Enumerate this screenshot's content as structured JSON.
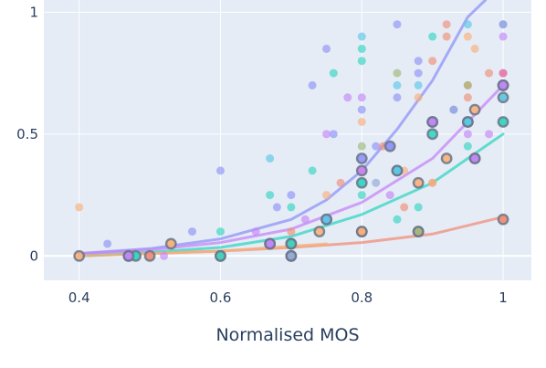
{
  "chart_data": {
    "type": "scatter",
    "title": "",
    "xlabel": "Normalised MOS",
    "ylabel": "",
    "xlim": [
      0.35,
      1.04
    ],
    "ylim": [
      -0.1,
      1.05
    ],
    "x_ticks": [
      {
        "value": 0.4,
        "label": "0.4"
      },
      {
        "value": 0.6,
        "label": "0.6"
      },
      {
        "value": 0.8,
        "label": "0.8"
      },
      {
        "value": 1.0,
        "label": "1"
      }
    ],
    "y_ticks": [
      {
        "value": 0,
        "label": "0"
      },
      {
        "value": 0.5,
        "label": "0.5"
      },
      {
        "value": 1,
        "label": "1"
      }
    ],
    "grid": true,
    "background": "#e5ecf6",
    "series": [
      {
        "color": "#8f93f7",
        "points": [
          [
            0.44,
            0.05
          ],
          [
            0.56,
            0.1
          ],
          [
            0.6,
            0.35
          ],
          [
            0.68,
            0.2
          ],
          [
            0.7,
            0.25
          ],
          [
            0.73,
            0.7
          ],
          [
            0.75,
            0.85
          ],
          [
            0.76,
            0.5
          ],
          [
            0.8,
            0.6
          ],
          [
            0.82,
            0.45
          ],
          [
            0.84,
            0.45
          ],
          [
            0.85,
            0.65
          ],
          [
            0.85,
            0.95
          ],
          [
            0.88,
            0.8
          ],
          [
            0.88,
            0.75
          ],
          [
            0.93,
            0.6
          ],
          [
            0.96,
            0.4
          ],
          [
            1.0,
            0.95
          ]
        ],
        "highlight": [
          [
            0.47,
            0
          ],
          [
            0.67,
            0.05
          ],
          [
            0.75,
            0.15
          ],
          [
            0.8,
            0.4
          ],
          [
            0.84,
            0.45
          ],
          [
            0.9,
            0.55
          ],
          [
            0.96,
            0.4
          ],
          [
            1.0,
            0.7
          ]
        ],
        "curve": [
          [
            0.4,
            0.01
          ],
          [
            0.5,
            0.03
          ],
          [
            0.6,
            0.07
          ],
          [
            0.7,
            0.15
          ],
          [
            0.75,
            0.23
          ],
          [
            0.8,
            0.35
          ],
          [
            0.85,
            0.52
          ],
          [
            0.9,
            0.72
          ],
          [
            0.95,
            0.98
          ],
          [
            0.975,
            1.05
          ]
        ]
      },
      {
        "color": "#ef8f78",
        "points": [
          [
            0.5,
            0
          ],
          [
            0.7,
            0.1
          ],
          [
            0.77,
            0.3
          ],
          [
            0.8,
            0.35
          ],
          [
            0.83,
            0.45
          ],
          [
            0.86,
            0.2
          ],
          [
            0.9,
            0.8
          ],
          [
            0.9,
            0.3
          ],
          [
            0.92,
            0.9
          ],
          [
            0.92,
            0.95
          ],
          [
            0.95,
            0.65
          ],
          [
            0.95,
            0.7
          ],
          [
            0.98,
            0.75
          ],
          [
            1.0,
            0.75
          ],
          [
            1.0,
            0.15
          ]
        ],
        "highlight": [
          [
            0.5,
            0
          ],
          [
            0.6,
            0
          ],
          [
            0.7,
            0.05
          ],
          [
            0.8,
            0.1
          ],
          [
            0.88,
            0.1
          ],
          [
            1.0,
            0.15
          ]
        ],
        "curve": [
          [
            0.4,
            0.0
          ],
          [
            0.5,
            0.01
          ],
          [
            0.6,
            0.02
          ],
          [
            0.7,
            0.035
          ],
          [
            0.8,
            0.055
          ],
          [
            0.9,
            0.09
          ],
          [
            1.0,
            0.16
          ]
        ]
      },
      {
        "color": "#33d6c0",
        "points": [
          [
            0.48,
            0
          ],
          [
            0.6,
            0.1
          ],
          [
            0.67,
            0.25
          ],
          [
            0.7,
            0.2
          ],
          [
            0.73,
            0.35
          ],
          [
            0.76,
            0.75
          ],
          [
            0.8,
            0.85
          ],
          [
            0.8,
            0.8
          ],
          [
            0.8,
            0.25
          ],
          [
            0.85,
            0.15
          ],
          [
            0.88,
            0.2
          ],
          [
            0.9,
            0.9
          ],
          [
            0.9,
            0.55
          ],
          [
            0.95,
            0.45
          ],
          [
            1.0,
            0.7
          ]
        ],
        "highlight": [
          [
            0.48,
            0
          ],
          [
            0.6,
            0
          ],
          [
            0.7,
            0.05
          ],
          [
            0.8,
            0.3
          ],
          [
            0.85,
            0.35
          ],
          [
            0.9,
            0.5
          ],
          [
            0.95,
            0.55
          ],
          [
            1.0,
            0.55
          ]
        ],
        "curve": [
          [
            0.4,
            0.0
          ],
          [
            0.5,
            0.015
          ],
          [
            0.6,
            0.035
          ],
          [
            0.7,
            0.08
          ],
          [
            0.8,
            0.17
          ],
          [
            0.9,
            0.3
          ],
          [
            1.0,
            0.5
          ]
        ]
      },
      {
        "color": "#c585f7",
        "points": [
          [
            0.52,
            0
          ],
          [
            0.65,
            0.1
          ],
          [
            0.72,
            0.15
          ],
          [
            0.75,
            0.5
          ],
          [
            0.78,
            0.65
          ],
          [
            0.8,
            0.65
          ],
          [
            0.84,
            0.25
          ],
          [
            0.9,
            0.55
          ],
          [
            0.95,
            0.5
          ],
          [
            0.98,
            0.5
          ],
          [
            1.0,
            0.9
          ]
        ],
        "highlight": [
          [
            0.47,
            0
          ],
          [
            0.67,
            0.05
          ],
          [
            0.8,
            0.35
          ],
          [
            0.9,
            0.55
          ],
          [
            0.96,
            0.4
          ],
          [
            1.0,
            0.7
          ]
        ],
        "curve": [
          [
            0.4,
            0.01
          ],
          [
            0.5,
            0.025
          ],
          [
            0.6,
            0.055
          ],
          [
            0.7,
            0.11
          ],
          [
            0.8,
            0.22
          ],
          [
            0.9,
            0.4
          ],
          [
            1.0,
            0.7
          ]
        ]
      },
      {
        "color": "#f7b07a",
        "points": [
          [
            0.4,
            0.2
          ],
          [
            0.53,
            0.05
          ],
          [
            0.75,
            0.25
          ],
          [
            0.8,
            0.55
          ],
          [
            0.86,
            0.35
          ],
          [
            0.88,
            0.65
          ],
          [
            0.9,
            0.3
          ],
          [
            0.95,
            0.9
          ],
          [
            0.96,
            0.85
          ],
          [
            1.0,
            0.65
          ]
        ],
        "highlight": [
          [
            0.4,
            0
          ],
          [
            0.53,
            0.05
          ],
          [
            0.74,
            0.1
          ],
          [
            0.8,
            0.1
          ],
          [
            0.88,
            0.3
          ],
          [
            0.92,
            0.4
          ],
          [
            0.96,
            0.6
          ]
        ],
        "curve": [
          [
            0.4,
            0.0
          ],
          [
            0.5,
            0.01
          ],
          [
            0.6,
            0.02
          ],
          [
            0.7,
            0.04
          ],
          [
            0.75,
            0.05
          ]
        ]
      },
      {
        "color": "#5cc8e8",
        "points": [
          [
            0.67,
            0.4
          ],
          [
            0.8,
            0.9
          ],
          [
            0.8,
            0.3
          ],
          [
            0.85,
            0.7
          ],
          [
            0.88,
            0.7
          ],
          [
            0.95,
            0.95
          ],
          [
            0.95,
            0.55
          ]
        ],
        "highlight": [
          [
            0.75,
            0.15
          ],
          [
            0.85,
            0.35
          ],
          [
            0.95,
            0.55
          ],
          [
            1.0,
            0.65
          ]
        ],
        "curve": []
      },
      {
        "color": "#a0b87a",
        "points": [
          [
            0.8,
            0.45
          ],
          [
            0.85,
            0.75
          ],
          [
            0.95,
            0.7
          ],
          [
            1.0,
            0.55
          ]
        ],
        "highlight": [
          [
            0.7,
            0
          ],
          [
            0.88,
            0.1
          ]
        ],
        "curve": []
      },
      {
        "color": "#e068b8",
        "points": [
          [
            0.8,
            0.35
          ],
          [
            0.9,
            0.55
          ],
          [
            1.0,
            0.75
          ]
        ],
        "highlight": [],
        "curve": []
      },
      {
        "color": "#90a8d8",
        "points": [
          [
            0.93,
            0.6
          ],
          [
            1.0,
            0.95
          ],
          [
            0.82,
            0.3
          ]
        ],
        "highlight": [
          [
            0.7,
            0
          ]
        ],
        "curve": []
      }
    ]
  }
}
